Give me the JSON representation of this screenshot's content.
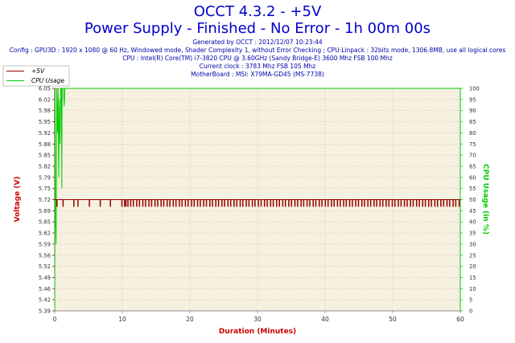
{
  "header": {
    "title": "OCCT 4.3.2 - +5V",
    "subtitle": "Power Supply - Finished - No Error - 1h 00m 00s",
    "info_lines": [
      "Generated by OCCT : 2012/12/07 10:23:44",
      "Config : GPU3D : 1920 x 1080 @ 60 Hz, Windowed mode, Shader Complexity 1, without Error Checking ; CPU:Linpack : 32bits mode, 1306.8MB, use all logical cores",
      "CPU : Intel(R) Core(TM) i7-3820 CPU @ 3.60GHz (Sandy Bridge-E) 3600 Mhz FSB 100 Mhz",
      "Current clock : 3783 Mhz FSB 105 Mhz",
      "MotherBoard : MSI: X79MA-GD45 (MS-7738)"
    ]
  },
  "colors": {
    "voltage": "#990000",
    "cpu": "#00cc00",
    "title": "#0000cc",
    "axis_label": "#cc0000",
    "plot_bg": "#f5f0e0",
    "grid": "#d0a090"
  },
  "chart_data": {
    "type": "line",
    "xlabel": "Duration (Minutes)",
    "ylabel": "Voltage (V)",
    "y2label": "CPU Usage (in %)",
    "xlim": [
      0,
      60
    ],
    "ylim": [
      5.39,
      6.05
    ],
    "y2lim": [
      0,
      100
    ],
    "x_ticks": [
      "0",
      "10",
      "20",
      "30",
      "40",
      "50",
      "60"
    ],
    "y_ticks": [
      "5.39",
      "5.42",
      "5.46",
      "5.49",
      "5.52",
      "5.56",
      "5.59",
      "5.62",
      "5.65",
      "5.69",
      "5.72",
      "5.75",
      "5.79",
      "5.82",
      "5.85",
      "5.88",
      "5.92",
      "5.95",
      "5.98",
      "6.02",
      "6.05"
    ],
    "y2_ticks": [
      "0",
      "5",
      "10",
      "15",
      "20",
      "25",
      "30",
      "35",
      "40",
      "45",
      "50",
      "55",
      "60",
      "65",
      "70",
      "75",
      "80",
      "85",
      "90",
      "95",
      "100"
    ],
    "grid": true,
    "legend": "top-left",
    "series": [
      {
        "name": "+5V",
        "axis": "left",
        "baseline": 5.72,
        "dip_value": 5.7,
        "dip_minutes": [
          0.3,
          1.2,
          2.8,
          3.4,
          5.1,
          6.7,
          8.2,
          9.9,
          10.3,
          10.5,
          10.8,
          11.2,
          11.6,
          12.1,
          12.5,
          13.0,
          13.4,
          13.9,
          14.3,
          14.8,
          15.2,
          15.7,
          16.1,
          16.6,
          17.0,
          17.5,
          17.9,
          18.4,
          18.8,
          19.3,
          19.7,
          20.2,
          20.6,
          21.1,
          21.5,
          22.0,
          22.4,
          22.9,
          23.3,
          23.8,
          24.2,
          24.7,
          25.1,
          25.6,
          26.0,
          26.5,
          26.9,
          27.4,
          27.8,
          28.3,
          28.7,
          29.2,
          29.6,
          30.1,
          30.5,
          31.0,
          31.4,
          31.9,
          32.3,
          32.8,
          33.2,
          33.7,
          34.1,
          34.6,
          35.0,
          35.5,
          35.9,
          36.4,
          36.8,
          37.3,
          37.7,
          38.2,
          38.6,
          39.1,
          39.5,
          40.0,
          40.4,
          40.9,
          41.3,
          41.8,
          42.2,
          42.7,
          43.1,
          43.6,
          44.0,
          44.5,
          44.9,
          45.4,
          45.8,
          46.3,
          46.7,
          47.2,
          47.6,
          48.1,
          48.5,
          49.0,
          49.4,
          49.9,
          50.3,
          50.8,
          51.2,
          51.7,
          52.1,
          52.6,
          53.0,
          53.5,
          53.9,
          54.4,
          54.8,
          55.3,
          55.7,
          56.2,
          56.6,
          57.1,
          57.5,
          58.0,
          58.4,
          58.9,
          59.3,
          59.8
        ]
      },
      {
        "name": "CPU Usage",
        "axis": "right",
        "x": [
          0,
          0.05,
          0.1,
          0.2,
          0.3,
          0.4,
          0.5,
          0.6,
          0.7,
          0.8,
          0.9,
          1.0,
          1.05,
          1.1,
          1.2,
          1.3,
          1.4,
          1.5,
          1.6,
          1.7,
          1.8,
          1.9,
          2.0,
          2.2,
          2.4,
          60
        ],
        "values": [
          0,
          100,
          50,
          30,
          100,
          80,
          100,
          60,
          95,
          75,
          100,
          100,
          55,
          100,
          100,
          100,
          92,
          100,
          100,
          100,
          100,
          100,
          100,
          100,
          100,
          100
        ]
      }
    ]
  }
}
